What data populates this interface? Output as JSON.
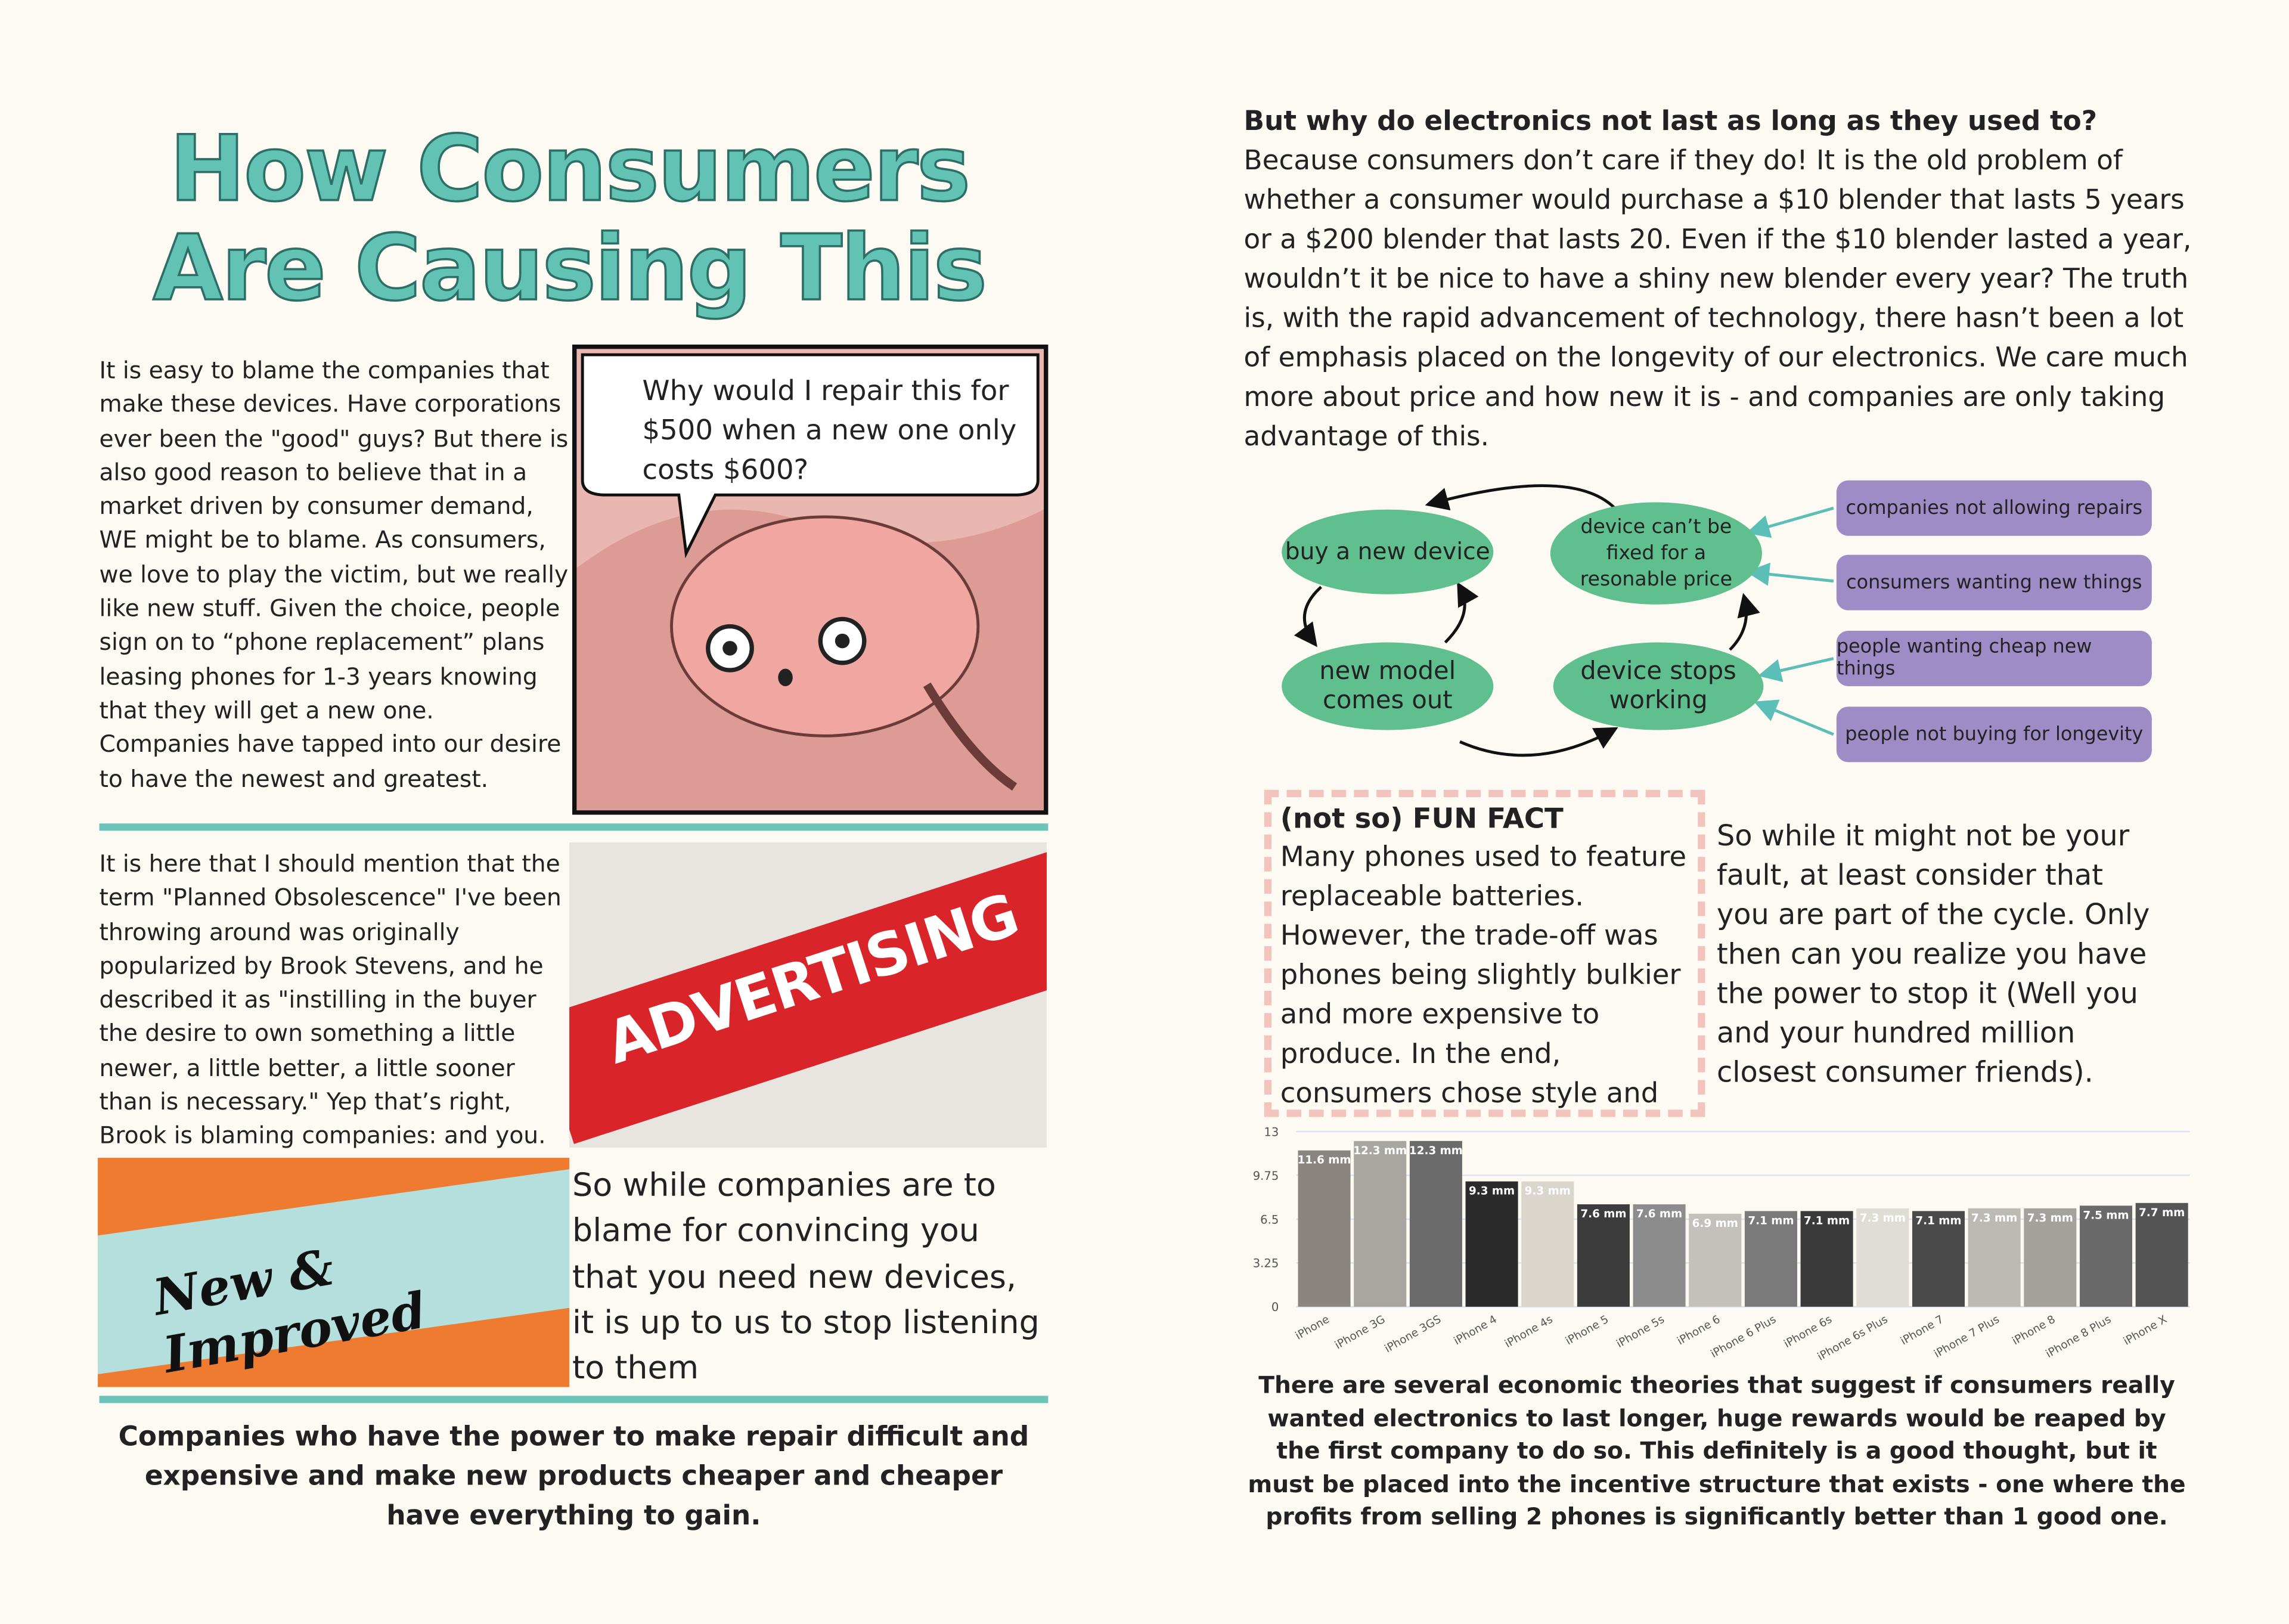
{
  "left": {
    "title": "How Consumers Are Causing This",
    "paragraph1": "It is easy to blame the companies that make these devices. Have corporations ever been the \"good\" guys? But there is also good reason to believe that in a market driven by consumer demand, WE might be to blame. As consumers, we love to play the victim, but we really like new stuff. Given the choice, people sign on to “phone replacement” plans leasing phones for 1-3 years knowing that they will get a new one. Companies have tapped into our desire to have the newest and greatest.",
    "speech_bubble": "Why would I repair this for $500 when a new one only costs $600?",
    "paragraph2": "It is here that I should mention that the term \"Planned Obsolescence\" I've been throwing around was originally popularized by Brook Stevens, and he described it as \"instilling in the buyer the desire to own something a little newer, a little better, a little sooner than is necessary.\" Yep that’s right, Brook is blaming companies: and you.",
    "advertising_image": "ADVERTISING",
    "new_improved_image": "New & Improved",
    "paragraph3": "So while companies are to blame for convincing you that you need new devices, it is up to us to stop listening to them",
    "conclusion": "Companies who have the power to make repair difficult and expensive and make new products cheaper and cheaper have everything to gain."
  },
  "right": {
    "question": "But why do electronics not last as long as they used to?",
    "answer": "Because consumers don’t care if they do! It is the old problem of whether a consumer would purchase a $10 blender that lasts 5 years or a $200 blender that lasts 20. Even if the $10 blender lasted a year, wouldn’t it be nice to have a shiny new blender every year? The truth is, with the rapid advancement of technology, there hasn’t been a lot of emphasis placed on the longevity of our electronics. We care much more about price and how new it is - and companies are only taking advantage of this.",
    "cycle": {
      "nodes": [
        "buy a new device",
        "device can’t be fixed for a resonable price",
        "device stops working",
        "new model comes out"
      ],
      "causes": [
        "companies not allowing repairs",
        "consumers wanting new things",
        "people wanting cheap new things",
        "people not buying for longevity"
      ]
    },
    "fun_fact": {
      "title": "(not so) FUN FACT",
      "text": "Many phones used to feature replaceable batteries. However, the trade-off was phones being slightly bulkier and more expensive to produce. In the end, consumers chose style and price over longevity"
    },
    "cycle_note": "So while it might not be your fault, at least consider that you are part of the cycle. Only then can you realize you have the power to stop it (Well you and your hundred million closest consumer friends).",
    "caption": "There are several economic theories that suggest if consumers really wanted electronics to last longer, huge rewards would be reaped by the first company to do so. This definitely is a good thought, but it must be placed into the incentive structure that exists - one where the profits from selling 2 phones is significantly better than 1 good one."
  },
  "chart_data": {
    "type": "bar",
    "categories": [
      "iPhone",
      "iPhone 3G",
      "iPhone 3GS",
      "iPhone 4",
      "iPhone 4s",
      "iPhone 5",
      "iPhone 5s",
      "iPhone 6",
      "iPhone 6 Plus",
      "iPhone 6s",
      "iPhone 6s Plus",
      "iPhone 7",
      "iPhone 7 Plus",
      "iPhone 8",
      "iPhone 8 Plus",
      "iPhone X"
    ],
    "values": [
      11.6,
      12.3,
      12.3,
      9.3,
      9.3,
      7.6,
      7.6,
      6.9,
      7.1,
      7.1,
      7.3,
      7.1,
      7.3,
      7.3,
      7.5,
      7.7
    ],
    "value_labels": [
      "11.6 mm",
      "12.3 mm",
      "12.3 mm",
      "9.3 mm",
      "9.3 mm",
      "7.6 mm",
      "7.6 mm",
      "6.9 mm",
      "7.1 mm",
      "7.1 mm",
      "7.3 mm",
      "7.1 mm",
      "7.3 mm",
      "7.3 mm",
      "7.5 mm",
      "7.7 mm"
    ],
    "colors": [
      "#8a8580",
      "#a9a5a0",
      "#6b6b6b",
      "#2b2b2b",
      "#dad5cd",
      "#3c3c3c",
      "#8c8c8c",
      "#c4c0bb",
      "#7a7a7a",
      "#3a3a3a",
      "#e0dcd6",
      "#4a4a4a",
      "#bdb9b4",
      "#a5a29e",
      "#6a6a6a",
      "#555555"
    ],
    "ylim": [
      0,
      13
    ],
    "yticks": [
      0,
      3.25,
      6.5,
      9.75,
      13
    ],
    "grid": true
  }
}
